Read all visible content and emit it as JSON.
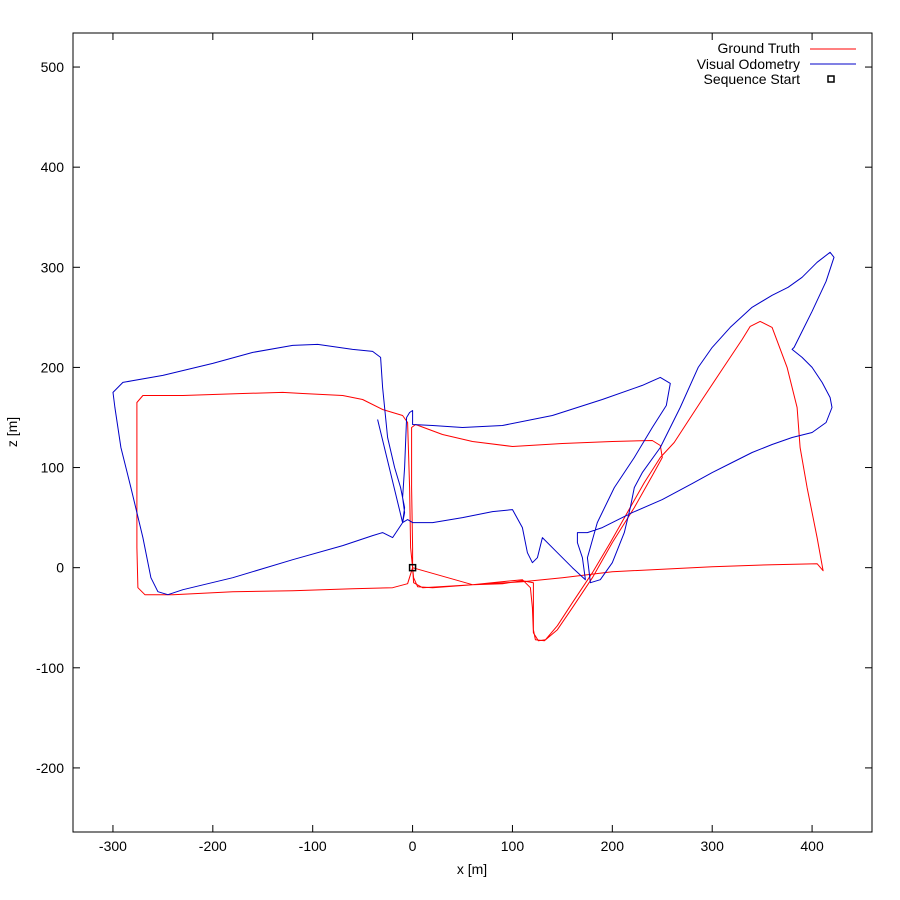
{
  "chart_data": {
    "type": "line",
    "title": "",
    "xlabel": "x [m]",
    "ylabel": "z [m]",
    "xlim": [
      -340,
      460
    ],
    "ylim": [
      -264,
      534
    ],
    "xticks": [
      -300,
      -200,
      -100,
      0,
      100,
      200,
      300,
      400
    ],
    "yticks": [
      -200,
      -100,
      0,
      100,
      200,
      300,
      400,
      500
    ],
    "grid": false,
    "legend_position": "top-right",
    "series": [
      {
        "name": "Ground Truth",
        "color": "#ff0000",
        "points": [
          [
            0,
            0
          ],
          [
            -5,
            -16
          ],
          [
            -20,
            -20
          ],
          [
            -60,
            -21
          ],
          [
            -120,
            -23
          ],
          [
            -180,
            -24
          ],
          [
            -240,
            -27
          ],
          [
            -268,
            -27
          ],
          [
            -275,
            -20
          ],
          [
            -276,
            20
          ],
          [
            -276,
            100
          ],
          [
            -276,
            165
          ],
          [
            -270,
            172
          ],
          [
            -230,
            172
          ],
          [
            -170,
            174
          ],
          [
            -130,
            175
          ],
          [
            -110,
            174
          ],
          [
            -70,
            172
          ],
          [
            -50,
            168
          ],
          [
            -30,
            158
          ],
          [
            -10,
            152
          ],
          [
            -5,
            145
          ],
          [
            -3,
            80
          ],
          [
            -2,
            20
          ],
          [
            0,
            0
          ],
          [
            0,
            20
          ],
          [
            -1,
            80
          ],
          [
            -1,
            140
          ],
          [
            3,
            143
          ],
          [
            30,
            133
          ],
          [
            60,
            126
          ],
          [
            100,
            121
          ],
          [
            150,
            124
          ],
          [
            200,
            126
          ],
          [
            240,
            127
          ],
          [
            248,
            122
          ],
          [
            250,
            110
          ],
          [
            240,
            92
          ],
          [
            222,
            60
          ],
          [
            200,
            25
          ],
          [
            180,
            -10
          ],
          [
            160,
            -40
          ],
          [
            145,
            -62
          ],
          [
            132,
            -73
          ],
          [
            123,
            -72
          ],
          [
            121,
            -62
          ],
          [
            121,
            -30
          ],
          [
            121,
            -15
          ],
          [
            110,
            -13
          ],
          [
            90,
            -16
          ],
          [
            60,
            -17
          ],
          [
            20,
            -20
          ],
          [
            5,
            -19
          ],
          [
            1,
            -10
          ],
          [
            0,
            0
          ],
          [
            1,
            -15
          ],
          [
            10,
            -20
          ],
          [
            60,
            -17
          ],
          [
            110,
            -14
          ],
          [
            150,
            -10
          ],
          [
            200,
            -4
          ],
          [
            260,
            -1
          ],
          [
            300,
            1
          ],
          [
            360,
            3
          ],
          [
            405,
            4
          ],
          [
            411,
            -3
          ],
          [
            405,
            30
          ],
          [
            395,
            80
          ],
          [
            388,
            120
          ],
          [
            385,
            160
          ],
          [
            375,
            200
          ],
          [
            360,
            240
          ],
          [
            348,
            246
          ],
          [
            338,
            241
          ],
          [
            330,
            228
          ],
          [
            310,
            198
          ],
          [
            290,
            168
          ],
          [
            275,
            145
          ],
          [
            262,
            125
          ],
          [
            248,
            110
          ],
          [
            232,
            85
          ],
          [
            215,
            55
          ],
          [
            198,
            25
          ],
          [
            180,
            -5
          ],
          [
            160,
            -35
          ],
          [
            145,
            -58
          ],
          [
            133,
            -72
          ],
          [
            126,
            -73
          ],
          [
            121,
            -65
          ],
          [
            120,
            -40
          ],
          [
            118,
            -20
          ],
          [
            110,
            -12
          ],
          [
            60,
            -17
          ],
          [
            0,
            0
          ]
        ]
      },
      {
        "name": "Visual Odometry",
        "color": "#0000c8",
        "points": [
          [
            -10,
            45
          ],
          [
            -8,
            55
          ],
          [
            -10,
            70
          ],
          [
            -8,
            100
          ],
          [
            -6,
            150
          ],
          [
            -3,
            155
          ],
          [
            0,
            157
          ],
          [
            0,
            143
          ],
          [
            20,
            142
          ],
          [
            50,
            140
          ],
          [
            90,
            142
          ],
          [
            140,
            152
          ],
          [
            190,
            168
          ],
          [
            230,
            182
          ],
          [
            248,
            190
          ],
          [
            258,
            184
          ],
          [
            254,
            162
          ],
          [
            240,
            140
          ],
          [
            222,
            110
          ],
          [
            202,
            80
          ],
          [
            185,
            45
          ],
          [
            175,
            10
          ],
          [
            178,
            -15
          ],
          [
            188,
            -12
          ],
          [
            200,
            5
          ],
          [
            212,
            35
          ],
          [
            218,
            60
          ],
          [
            222,
            80
          ],
          [
            230,
            95
          ],
          [
            248,
            120
          ],
          [
            268,
            160
          ],
          [
            286,
            200
          ],
          [
            300,
            220
          ],
          [
            318,
            240
          ],
          [
            340,
            260
          ],
          [
            360,
            272
          ],
          [
            376,
            280
          ],
          [
            390,
            290
          ],
          [
            405,
            305
          ],
          [
            418,
            315
          ],
          [
            422,
            310
          ],
          [
            414,
            286
          ],
          [
            400,
            256
          ],
          [
            388,
            232
          ],
          [
            382,
            220
          ],
          [
            380,
            218
          ],
          [
            390,
            210
          ],
          [
            400,
            200
          ],
          [
            410,
            185
          ],
          [
            418,
            170
          ],
          [
            420,
            160
          ],
          [
            414,
            145
          ],
          [
            400,
            135
          ],
          [
            380,
            130
          ],
          [
            360,
            123
          ],
          [
            340,
            115
          ],
          [
            320,
            105
          ],
          [
            300,
            95
          ],
          [
            280,
            84
          ],
          [
            250,
            68
          ],
          [
            220,
            55
          ],
          [
            190,
            40
          ],
          [
            175,
            35
          ],
          [
            165,
            35
          ],
          [
            165,
            25
          ],
          [
            170,
            10
          ],
          [
            173,
            -12
          ],
          [
            160,
            0
          ],
          [
            145,
            15
          ],
          [
            130,
            30
          ],
          [
            125,
            10
          ],
          [
            120,
            5
          ],
          [
            115,
            15
          ],
          [
            110,
            40
          ],
          [
            100,
            58
          ],
          [
            80,
            56
          ],
          [
            50,
            50
          ],
          [
            20,
            45
          ],
          [
            0,
            45
          ],
          [
            -5,
            48
          ],
          [
            -10,
            45
          ],
          [
            -20,
            30
          ],
          [
            -30,
            35
          ],
          [
            -40,
            32
          ],
          [
            -70,
            22
          ],
          [
            -120,
            8
          ],
          [
            -180,
            -10
          ],
          [
            -230,
            -22
          ],
          [
            -245,
            -27
          ],
          [
            -255,
            -24
          ],
          [
            -262,
            -10
          ],
          [
            -270,
            30
          ],
          [
            -282,
            80
          ],
          [
            -292,
            120
          ],
          [
            -298,
            160
          ],
          [
            -300,
            175
          ],
          [
            -290,
            185
          ],
          [
            -250,
            192
          ],
          [
            -200,
            204
          ],
          [
            -160,
            215
          ],
          [
            -120,
            222
          ],
          [
            -95,
            223
          ],
          [
            -60,
            218
          ],
          [
            -40,
            216
          ],
          [
            -32,
            210
          ],
          [
            -30,
            180
          ],
          [
            -25,
            130
          ],
          [
            -18,
            100
          ],
          [
            -12,
            80
          ],
          [
            -8,
            60
          ],
          [
            -10,
            45
          ],
          [
            -35,
            148
          ]
        ]
      }
    ],
    "markers": [
      {
        "name": "Sequence Start",
        "x": 0,
        "y": 0,
        "shape": "square"
      }
    ]
  }
}
